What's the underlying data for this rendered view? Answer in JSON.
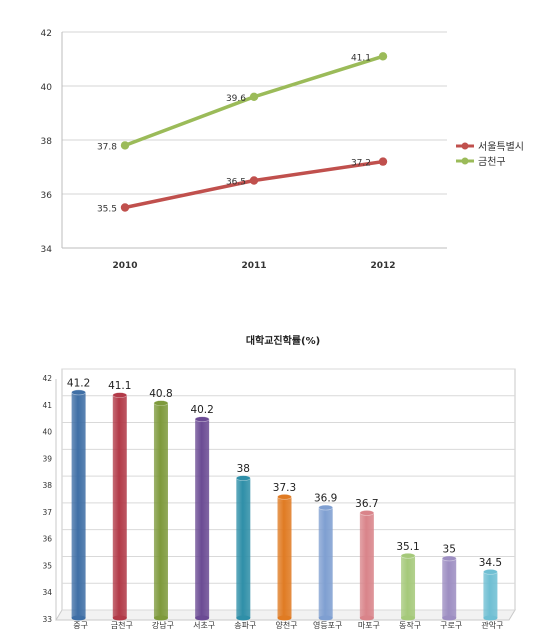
{
  "chart_data": [
    {
      "type": "line",
      "x": [
        "2010",
        "2011",
        "2012"
      ],
      "ylim": [
        34,
        42
      ],
      "yticks": [
        34,
        36,
        38,
        40,
        42
      ],
      "grid": true,
      "legend_position": "right",
      "series": [
        {
          "name": "서울특별시",
          "values": [
            35.5,
            36.5,
            37.2
          ],
          "labels": [
            "35.5",
            "36.5",
            "37.2"
          ],
          "color": "#c0504d"
        },
        {
          "name": "금천구",
          "values": [
            37.8,
            39.6,
            41.1
          ],
          "labels": [
            "37.8",
            "39.6",
            "41.1"
          ],
          "color": "#9bbb59"
        }
      ]
    },
    {
      "type": "bar",
      "title": "대학교진학률(%)",
      "categories": [
        "중구",
        "금천구",
        "강남구",
        "서초구",
        "송파구",
        "양천구",
        "영등포구",
        "마포구",
        "동작구",
        "구로구",
        "관악구"
      ],
      "values": [
        41.2,
        41.1,
        40.8,
        40.2,
        38,
        37.3,
        36.9,
        36.7,
        35.1,
        35,
        34.5
      ],
      "labels": [
        "41.2",
        "41.1",
        "40.8",
        "40.2",
        "38",
        "37.3",
        "36.9",
        "36.7",
        "35.1",
        "35",
        "34.5"
      ],
      "colors": [
        "#3f6fa6",
        "#b23a48",
        "#7e9a3c",
        "#6b4b94",
        "#2f8fa8",
        "#e07b23",
        "#7f9fd1",
        "#d9848a",
        "#a5c97a",
        "#9d8ec2",
        "#6fbfd3"
      ],
      "ylim": [
        33,
        42
      ],
      "yticks": [
        33,
        34,
        35,
        36,
        37,
        38,
        39,
        40,
        41,
        42
      ],
      "grid": true
    }
  ]
}
